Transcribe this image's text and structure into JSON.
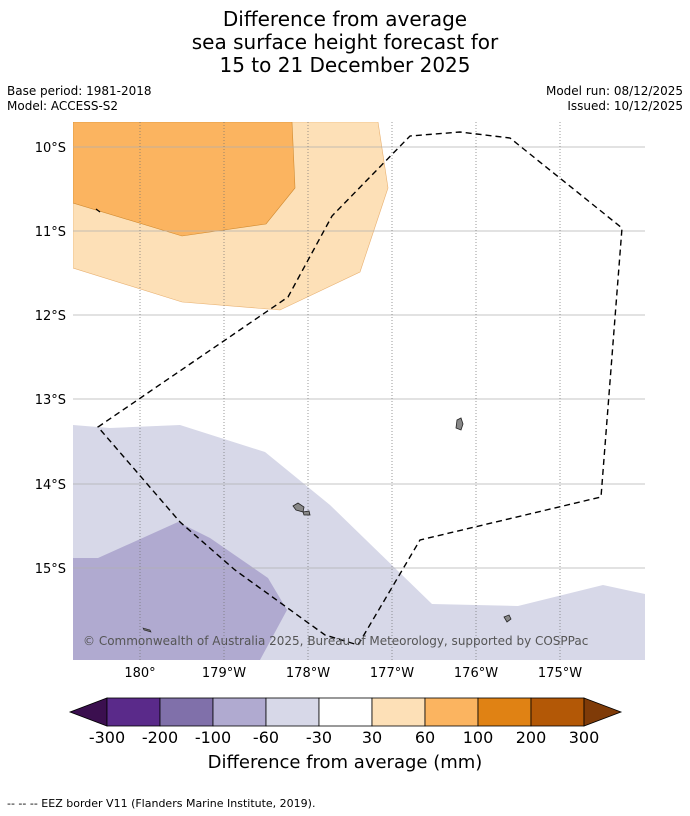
{
  "title": {
    "line1": "Difference from average",
    "line2": "sea surface height forecast for",
    "line3": "15 to 21 December 2025"
  },
  "meta": {
    "base_period": "Base period: 1981-2018",
    "model": "Model: ACCESS-S2",
    "model_run": "Model run: 08/12/2025",
    "issued": "Issued: 10/12/2025"
  },
  "map": {
    "lat_labels": [
      "10°S",
      "11°S",
      "12°S",
      "13°S",
      "14°S",
      "15°S"
    ],
    "lon_labels": [
      "180°",
      "179°W",
      "178°W",
      "177°W",
      "176°W",
      "175°W"
    ],
    "copyright": "© Commonwealth of Australia 2025, Bureau of Meteorology, supported by COSPPac"
  },
  "colorbar": {
    "labels": [
      "-300",
      "-200",
      "-100",
      "-60",
      "-30",
      "30",
      "60",
      "100",
      "200",
      "300"
    ],
    "colors": [
      "#3b0f4f",
      "#5a2a8a",
      "#8070aa",
      "#b0aad0",
      "#d7d8e8",
      "#ffffff",
      "#fde0b7",
      "#fbb460",
      "#e08214",
      "#b35806",
      "#7f3b08"
    ],
    "title": "Difference from average (mm)"
  },
  "colors": {
    "light_orange": "#fde0b7",
    "orange": "#fbb460",
    "light_purple": "#d7d8e8",
    "purple": "#b0aad0",
    "grid": "#b0b0b0"
  },
  "footer": {
    "legend": "--  --  -- EEZ border V11 (Flanders Marine Institute, 2019)."
  }
}
